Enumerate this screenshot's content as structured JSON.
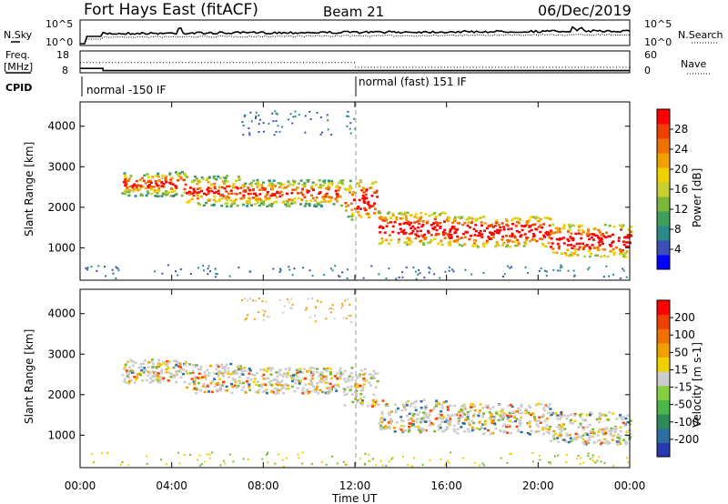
{
  "header": {
    "title": "Fort Hays East (fitACF)",
    "beam": "Beam 21",
    "date": "06/Dec/2019"
  },
  "noise_panel": {
    "left_label": "N.Sky",
    "right_label": "N.Search",
    "left_ticks": [
      "10^5",
      "10^0"
    ],
    "right_ticks": [
      "10^5",
      "10^0"
    ]
  },
  "freq_panel": {
    "left_label_1": "Freq.",
    "left_label_2": "[MHz]",
    "right_label": "Nave",
    "left_ticks": [
      "18",
      "8"
    ],
    "right_ticks": [
      "60",
      "0"
    ],
    "freq_values": [
      10,
      9,
      9
    ],
    "nave_values": [
      28,
      15
    ]
  },
  "cpid": {
    "label": "CPID",
    "segments": [
      {
        "text": "normal -150 IF",
        "start_hour": 0
      },
      {
        "text": "normal (fast) 151 IF",
        "start_hour": 12
      }
    ]
  },
  "chart_data": [
    {
      "type": "heatmap",
      "name": "power",
      "ylabel": "Slant Range [km]",
      "yticks": [
        "1000",
        "2000",
        "3000",
        "4000"
      ],
      "ylim": [
        200,
        4600
      ],
      "xlim": [
        0,
        24
      ],
      "colorbar": {
        "label": "Power [dB]",
        "ticks": [
          "4",
          "8",
          "12",
          "16",
          "20",
          "24",
          "28"
        ],
        "colors": [
          "#0000ff",
          "#3a4fb8",
          "#2a8a8a",
          "#3f9e5a",
          "#7ab83a",
          "#c8d030",
          "#f0d000",
          "#f0a000",
          "#f07000",
          "#f04000",
          "#ff0000"
        ]
      }
    },
    {
      "type": "heatmap",
      "name": "velocity",
      "ylabel": "Slant Range [km]",
      "yticks": [
        "1000",
        "2000",
        "3000",
        "4000"
      ],
      "ylim": [
        200,
        4600
      ],
      "xlim": [
        0,
        24
      ],
      "colorbar": {
        "label": "Velocity [m s-1]",
        "ticks": [
          "200",
          "100",
          "50",
          "15",
          "-15",
          "-50",
          "-100",
          "-200"
        ],
        "colors": [
          "#2838b0",
          "#2d6fa0",
          "#2e8b57",
          "#49b84a",
          "#86d040",
          "#cccccc",
          "#f0d000",
          "#f0a000",
          "#f07000",
          "#f04000",
          "#ff0000"
        ]
      }
    }
  ],
  "xaxis": {
    "ticks": [
      "00:00",
      "04:00",
      "08:00",
      "12:00",
      "16:00",
      "20:00",
      "00:00"
    ],
    "label": "Time UT"
  },
  "echo_bands": [
    {
      "t0": 1.8,
      "t1": 4.6,
      "r0": 2300,
      "r1": 2900
    },
    {
      "t0": 4.6,
      "t1": 7.0,
      "r0": 2050,
      "r1": 2800
    },
    {
      "t0": 7.0,
      "t1": 11.5,
      "r0": 2050,
      "r1": 2700
    },
    {
      "t0": 11.5,
      "t1": 13.0,
      "r0": 1700,
      "r1": 2700
    },
    {
      "t0": 13.0,
      "t1": 16.0,
      "r0": 1100,
      "r1": 1900
    },
    {
      "t0": 16.0,
      "t1": 20.5,
      "r0": 1050,
      "r1": 1800
    },
    {
      "t0": 20.5,
      "t1": 24.0,
      "r0": 800,
      "r1": 1600
    }
  ]
}
